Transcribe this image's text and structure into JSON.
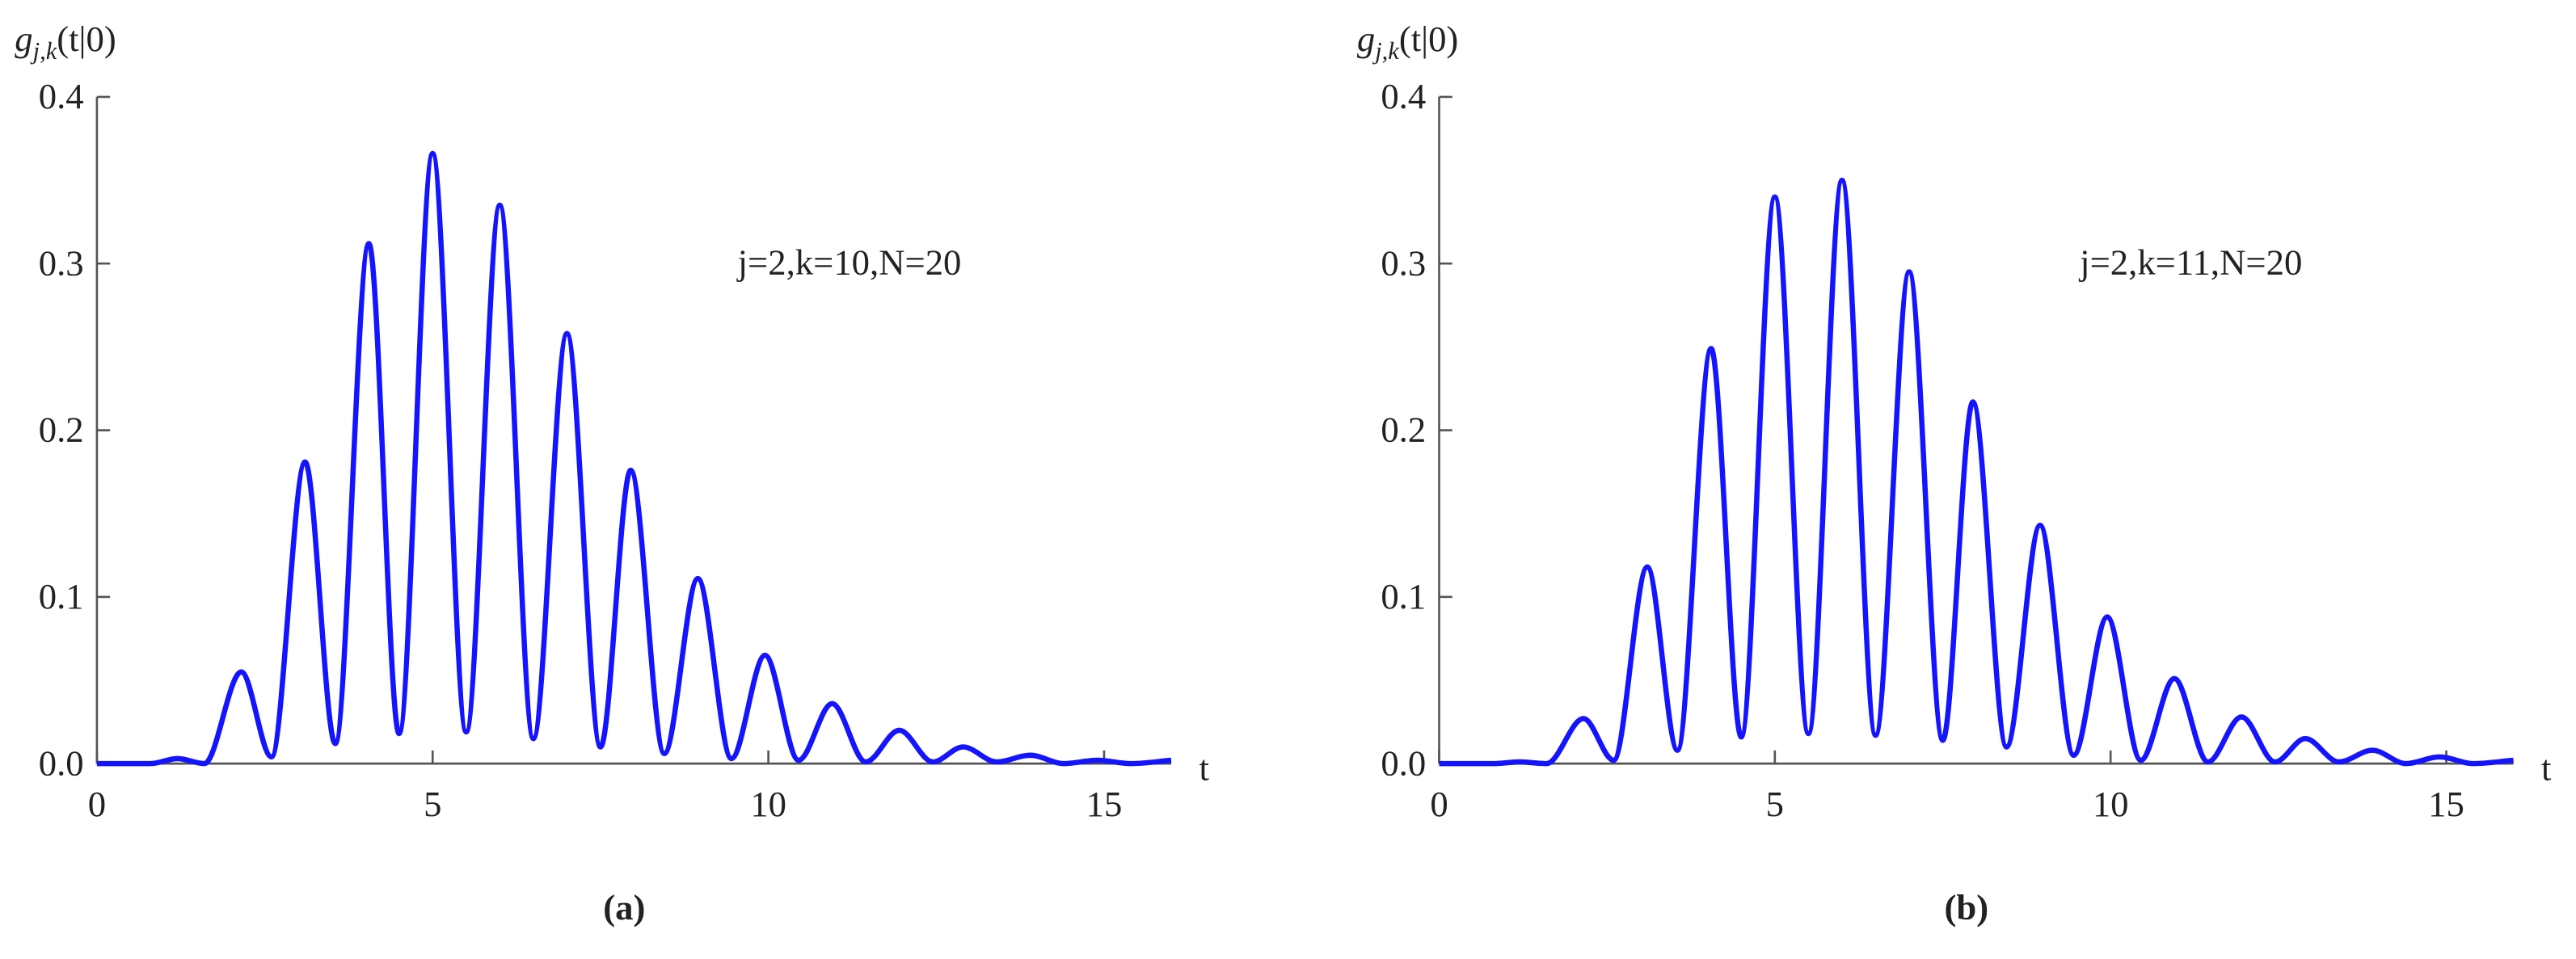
{
  "chart_data": [
    {
      "type": "line",
      "ylabel": {
        "symbol": "g",
        "subscript": "j,k",
        "argument": "(t|0)"
      },
      "xlabel": "t",
      "annotation": "j=2,k=10,N=20",
      "caption": "(a)",
      "x": [
        0,
        0.8,
        1.2,
        1.6,
        2.15,
        2.6,
        3.1,
        3.55,
        4.05,
        4.5,
        5,
        5.5,
        6,
        6.5,
        7,
        7.5,
        7.95,
        8.45,
        8.95,
        9.45,
        9.95,
        10.45,
        10.95,
        11.45,
        11.95,
        12.45,
        12.9,
        13.4,
        13.9,
        14.4,
        14.9,
        15.4,
        16
      ],
      "values": [
        0,
        0,
        0.003,
        0,
        0.055,
        0.004,
        0.181,
        0.012,
        0.312,
        0.018,
        0.366,
        0.019,
        0.335,
        0.015,
        0.258,
        0.01,
        0.176,
        0.006,
        0.111,
        0.003,
        0.065,
        0.002,
        0.036,
        0.001,
        0.02,
        0.001,
        0.01,
        0.001,
        0.005,
        0,
        0.002,
        0,
        0.002
      ],
      "color": "#1414ff",
      "xlim": [
        0,
        16
      ],
      "xticks": [
        0,
        5,
        10,
        15
      ],
      "ylim": [
        0,
        0.4
      ],
      "yticks": [
        {
          "value": 0,
          "label": "0.0"
        },
        0.1,
        0.2,
        0.3,
        0.4
      ]
    },
    {
      "type": "line",
      "ylabel": {
        "symbol": "g",
        "subscript": "j,k",
        "argument": "(t|0)"
      },
      "xlabel": "t",
      "annotation": "j=2,k=11,N=20",
      "caption": "(b)",
      "x": [
        0,
        0.8,
        1.2,
        1.6,
        2.15,
        2.6,
        3.1,
        3.55,
        4.05,
        4.5,
        5,
        5.5,
        6,
        6.5,
        7,
        7.5,
        7.95,
        8.45,
        8.95,
        9.45,
        9.95,
        10.45,
        10.95,
        11.45,
        11.95,
        12.45,
        12.9,
        13.4,
        13.9,
        14.4,
        14.9,
        15.4,
        16
      ],
      "values": [
        0,
        0,
        0.001,
        0,
        0.027,
        0.002,
        0.118,
        0.008,
        0.249,
        0.016,
        0.34,
        0.018,
        0.35,
        0.017,
        0.295,
        0.014,
        0.217,
        0.01,
        0.143,
        0.005,
        0.088,
        0.002,
        0.051,
        0.001,
        0.028,
        0.001,
        0.015,
        0.001,
        0.008,
        0,
        0.004,
        0,
        0.002
      ],
      "color": "#1414ff",
      "xlim": [
        0,
        16
      ],
      "xticks": [
        0,
        5,
        10,
        15
      ],
      "ylim": [
        0,
        0.4
      ],
      "yticks": [
        {
          "value": 0,
          "label": "0.0"
        },
        0.1,
        0.2,
        0.3,
        0.4
      ]
    }
  ]
}
